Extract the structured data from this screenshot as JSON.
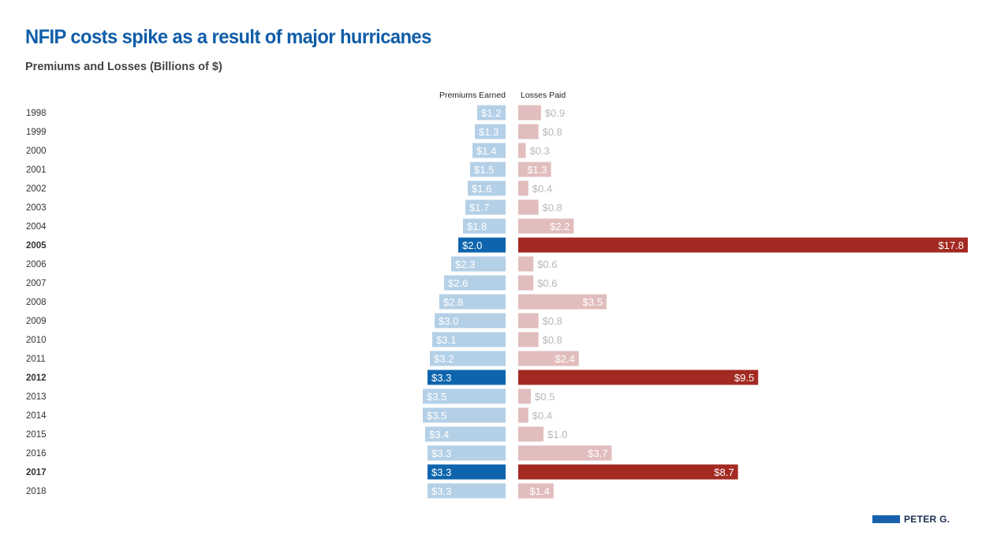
{
  "title": "NFIP costs spike as a result of major hurricanes",
  "subtitle": "Premiums and Losses (Billions of $)",
  "logo_text": "PETER G.",
  "colors": {
    "premium_light": "#b4d0e7",
    "premium_dark": "#0e65ad",
    "loss_light": "#e2bdbd",
    "loss_dark": "#a32a22",
    "label_light_muted": "#b8b8b8",
    "label_on_bar": "#ffffff",
    "year_text": "#333333",
    "title": "#0f5da8"
  },
  "chart_data": {
    "type": "bar",
    "orientation": "horizontal-diverging",
    "title": "NFIP costs spike as a result of major hurricanes",
    "subtitle": "Premiums and Losses (Billions of $)",
    "categories": [
      "1998",
      "1999",
      "2000",
      "2001",
      "2002",
      "2003",
      "2004",
      "2005",
      "2006",
      "2007",
      "2008",
      "2009",
      "2010",
      "2011",
      "2012",
      "2013",
      "2014",
      "2015",
      "2016",
      "2017",
      "2018"
    ],
    "highlight": [
      "2005",
      "2012",
      "2017"
    ],
    "value_prefix": "$",
    "series": [
      {
        "name": "Premiums Earned",
        "direction": "left",
        "values": [
          1.2,
          1.3,
          1.4,
          1.5,
          1.6,
          1.7,
          1.8,
          2.0,
          2.3,
          2.6,
          2.8,
          3.0,
          3.1,
          3.2,
          3.3,
          3.5,
          3.5,
          3.4,
          3.3,
          3.3,
          3.3
        ]
      },
      {
        "name": "Losses Paid",
        "direction": "right",
        "values": [
          0.9,
          0.8,
          0.3,
          1.3,
          0.4,
          0.8,
          2.2,
          17.8,
          0.6,
          0.6,
          3.5,
          0.8,
          0.8,
          2.4,
          9.5,
          0.5,
          0.4,
          1.0,
          3.7,
          8.7,
          1.4
        ]
      }
    ],
    "xlim": [
      0,
      17.8
    ],
    "legend": "column-headers-top"
  }
}
